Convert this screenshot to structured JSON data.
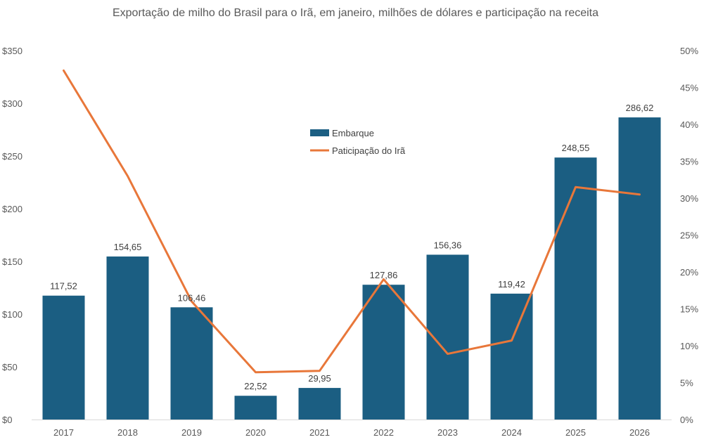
{
  "chart_data": {
    "type": "bar",
    "title": "Exportação de milho do Brasil para o Irã, em janeiro, milhões de dólares e participação na receita",
    "categories": [
      "2017",
      "2018",
      "2019",
      "2020",
      "2021",
      "2022",
      "2023",
      "2024",
      "2025",
      "2026"
    ],
    "series": [
      {
        "name": "Embarque",
        "type": "bar",
        "axis": "left",
        "color": "#1B5E82",
        "values": [
          117.52,
          154.65,
          106.46,
          22.52,
          29.95,
          127.86,
          156.36,
          119.42,
          248.55,
          286.62
        ],
        "labels": [
          "117,52",
          "154,65",
          "106,46",
          "22,52",
          "29,95",
          "127,86",
          "156,36",
          "119,42",
          "248,55",
          "286,62"
        ]
      },
      {
        "name": "Paticipação do Irã",
        "type": "line",
        "axis": "right",
        "color": "#E8773A",
        "values": [
          0.473,
          0.33,
          0.16,
          0.064,
          0.066,
          0.19,
          0.089,
          0.107,
          0.315,
          0.305
        ]
      }
    ],
    "y_left": {
      "min": 0,
      "max": 350,
      "ticks": [
        0,
        50,
        100,
        150,
        200,
        250,
        300,
        350
      ],
      "tick_labels": [
        "$0",
        "$50",
        "$100",
        "$150",
        "$200",
        "$250",
        "$300",
        "$350"
      ]
    },
    "y_right": {
      "min": 0,
      "max": 0.5,
      "ticks": [
        0,
        0.05,
        0.1,
        0.15,
        0.2,
        0.25,
        0.3,
        0.35,
        0.4,
        0.45,
        0.5
      ],
      "tick_labels": [
        "0%",
        "5%",
        "10%",
        "15%",
        "20%",
        "25%",
        "30%",
        "35%",
        "40%",
        "45%",
        "50%"
      ]
    },
    "legend": {
      "position": "top-center",
      "items": [
        {
          "label": "Embarque",
          "kind": "bar"
        },
        {
          "label": "Paticipação do Irã",
          "kind": "line"
        }
      ]
    },
    "grid": false
  }
}
